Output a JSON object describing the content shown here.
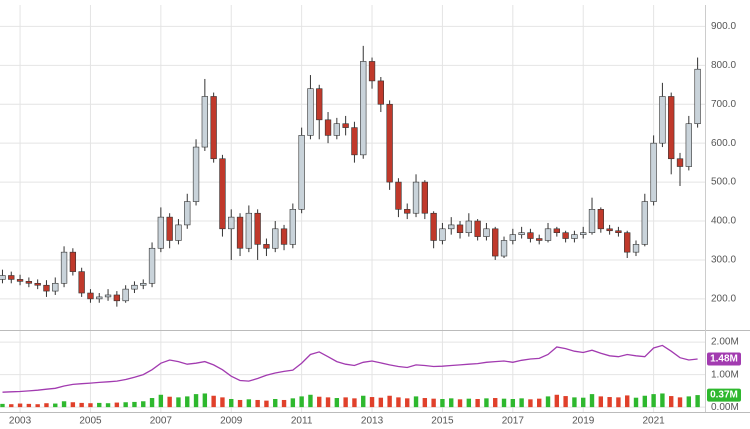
{
  "chart_data": [
    {
      "type": "candlestick",
      "x": [
        2002.5,
        2002.75,
        2003,
        2003.25,
        2003.5,
        2003.75,
        2004,
        2004.25,
        2004.5,
        2004.75,
        2005,
        2005.25,
        2005.5,
        2005.75,
        2006,
        2006.25,
        2006.5,
        2006.75,
        2007,
        2007.25,
        2007.5,
        2007.75,
        2008,
        2008.25,
        2008.5,
        2008.75,
        2009,
        2009.25,
        2009.5,
        2009.75,
        2010,
        2010.25,
        2010.5,
        2010.75,
        2011,
        2011.25,
        2011.5,
        2011.75,
        2012,
        2012.25,
        2012.5,
        2012.75,
        2013,
        2013.25,
        2013.5,
        2013.75,
        2014,
        2014.25,
        2014.5,
        2014.75,
        2015,
        2015.25,
        2015.5,
        2015.75,
        2016,
        2016.25,
        2016.5,
        2016.75,
        2017,
        2017.25,
        2017.5,
        2017.75,
        2018,
        2018.25,
        2018.5,
        2018.75,
        2019,
        2019.25,
        2019.5,
        2019.75,
        2020,
        2020.25,
        2020.5,
        2020.75,
        2021,
        2021.25,
        2021.5,
        2021.75,
        2022,
        2022.25
      ],
      "open": [
        250,
        260,
        250,
        245,
        240,
        235,
        220,
        240,
        320,
        270,
        215,
        200,
        205,
        210,
        195,
        225,
        235,
        240,
        330,
        410,
        350,
        390,
        450,
        590,
        720,
        560,
        380,
        410,
        330,
        420,
        340,
        330,
        380,
        340,
        430,
        620,
        740,
        660,
        620,
        650,
        640,
        570,
        810,
        760,
        700,
        500,
        430,
        420,
        500,
        420,
        350,
        380,
        390,
        370,
        400,
        360,
        380,
        310,
        350,
        365,
        370,
        355,
        350,
        380,
        370,
        355,
        365,
        370,
        430,
        380,
        375,
        370,
        320,
        340,
        450,
        600,
        720,
        560,
        540,
        650
      ],
      "high": [
        275,
        270,
        262,
        255,
        250,
        248,
        255,
        335,
        330,
        280,
        225,
        215,
        225,
        220,
        235,
        245,
        250,
        345,
        435,
        420,
        405,
        470,
        610,
        765,
        730,
        570,
        430,
        420,
        440,
        430,
        355,
        400,
        390,
        445,
        640,
        775,
        750,
        680,
        665,
        670,
        655,
        850,
        820,
        770,
        710,
        510,
        445,
        520,
        505,
        425,
        395,
        410,
        400,
        420,
        405,
        395,
        385,
        360,
        380,
        385,
        380,
        365,
        395,
        385,
        375,
        375,
        385,
        460,
        435,
        390,
        385,
        375,
        350,
        470,
        620,
        755,
        730,
        575,
        670,
        820
      ],
      "low": [
        240,
        240,
        235,
        230,
        225,
        205,
        210,
        230,
        260,
        205,
        190,
        190,
        195,
        180,
        190,
        215,
        225,
        230,
        320,
        330,
        340,
        380,
        440,
        580,
        550,
        360,
        300,
        310,
        320,
        300,
        310,
        320,
        325,
        330,
        420,
        610,
        610,
        600,
        610,
        620,
        550,
        560,
        740,
        680,
        480,
        410,
        405,
        410,
        405,
        330,
        340,
        365,
        355,
        360,
        350,
        350,
        300,
        305,
        340,
        355,
        345,
        340,
        345,
        360,
        345,
        345,
        355,
        365,
        370,
        365,
        360,
        305,
        310,
        335,
        440,
        590,
        520,
        490,
        530,
        640
      ],
      "close": [
        260,
        250,
        245,
        240,
        235,
        220,
        240,
        320,
        270,
        215,
        200,
        205,
        210,
        195,
        225,
        235,
        240,
        330,
        410,
        350,
        390,
        450,
        590,
        720,
        560,
        380,
        410,
        330,
        420,
        340,
        330,
        380,
        340,
        430,
        620,
        740,
        660,
        620,
        650,
        640,
        570,
        810,
        760,
        700,
        500,
        430,
        420,
        500,
        420,
        350,
        380,
        390,
        370,
        400,
        360,
        380,
        310,
        350,
        365,
        370,
        355,
        350,
        380,
        370,
        355,
        365,
        370,
        430,
        380,
        375,
        370,
        320,
        340,
        450,
        600,
        720,
        560,
        540,
        650,
        790
      ],
      "up_color": "#c9d3da",
      "down_color": "#c0392b",
      "outline_color": "#333333",
      "xlim": [
        2002.43,
        2022.46
      ],
      "xticks": [
        2003,
        2005,
        2007,
        2009,
        2011,
        2013,
        2015,
        2017,
        2019,
        2021
      ],
      "ylim": [
        120,
        955
      ],
      "yticks": [
        {
          "value": 200,
          "label": "200.0"
        },
        {
          "value": 300,
          "label": "300.0"
        },
        {
          "value": 400,
          "label": "400.0"
        },
        {
          "value": 500,
          "label": "500.0"
        },
        {
          "value": 600,
          "label": "600.0"
        },
        {
          "value": 700,
          "label": "700.0"
        },
        {
          "value": 800,
          "label": "800.0"
        },
        {
          "value": 900,
          "label": "900.0"
        }
      ],
      "grid": true
    },
    {
      "type": "bar",
      "ylim": [
        -0.15,
        2.28
      ],
      "yticks": [
        {
          "value": 0,
          "label": "0.00M"
        },
        {
          "value": 1,
          "label": "1.00M"
        },
        {
          "value": 2,
          "label": "2.00M"
        }
      ],
      "grid": true,
      "up_color": "#2eb82e",
      "down_color": "#e0402a",
      "series": [
        {
          "type": "line",
          "color": "#a23bb0",
          "values": [
            0.46,
            0.47,
            0.48,
            0.5,
            0.52,
            0.55,
            0.58,
            0.65,
            0.7,
            0.72,
            0.74,
            0.76,
            0.78,
            0.8,
            0.85,
            0.92,
            1.0,
            1.15,
            1.35,
            1.45,
            1.4,
            1.32,
            1.35,
            1.4,
            1.3,
            1.15,
            0.95,
            0.82,
            0.8,
            0.88,
            0.98,
            1.05,
            1.1,
            1.14,
            1.35,
            1.62,
            1.7,
            1.55,
            1.4,
            1.32,
            1.28,
            1.38,
            1.42,
            1.36,
            1.3,
            1.25,
            1.22,
            1.3,
            1.28,
            1.25,
            1.26,
            1.28,
            1.3,
            1.32,
            1.34,
            1.38,
            1.4,
            1.42,
            1.38,
            1.44,
            1.48,
            1.5,
            1.62,
            1.85,
            1.8,
            1.72,
            1.68,
            1.75,
            1.66,
            1.58,
            1.55,
            1.62,
            1.58,
            1.55,
            1.82,
            1.9,
            1.72,
            1.52,
            1.45,
            1.48
          ],
          "value_labels": [
            null,
            null,
            null,
            null,
            null,
            null,
            null,
            null,
            null,
            null,
            null,
            null,
            null,
            null,
            null,
            null,
            null,
            null,
            null,
            null,
            null,
            null,
            null,
            null,
            null,
            null,
            null,
            null,
            null,
            null,
            null,
            null,
            null,
            null,
            null,
            null,
            null,
            null,
            null,
            null,
            null,
            null,
            null,
            null,
            null,
            null,
            null,
            null,
            null,
            null,
            null,
            null,
            null,
            null,
            null,
            null,
            null,
            null,
            null,
            null,
            null,
            null,
            null,
            null,
            null,
            null,
            null,
            null,
            null,
            null,
            null,
            null,
            null,
            null,
            null,
            null,
            null,
            null,
            null,
            "1.48M"
          ]
        },
        {
          "type": "bar",
          "color": "#2eb82e",
          "values": [
            0.1,
            0.09,
            0.11,
            0.1,
            0.09,
            0.12,
            0.11,
            0.18,
            0.15,
            0.13,
            0.12,
            0.13,
            0.12,
            0.14,
            0.15,
            0.16,
            0.18,
            0.28,
            0.38,
            0.32,
            0.3,
            0.33,
            0.4,
            0.42,
            0.35,
            0.3,
            0.25,
            0.22,
            0.24,
            0.22,
            0.2,
            0.25,
            0.22,
            0.27,
            0.33,
            0.38,
            0.32,
            0.3,
            0.28,
            0.3,
            0.27,
            0.35,
            0.31,
            0.29,
            0.35,
            0.3,
            0.27,
            0.33,
            0.28,
            0.26,
            0.25,
            0.27,
            0.24,
            0.26,
            0.25,
            0.27,
            0.28,
            0.26,
            0.25,
            0.27,
            0.24,
            0.26,
            0.33,
            0.38,
            0.34,
            0.3,
            0.29,
            0.4,
            0.33,
            0.31,
            0.3,
            0.36,
            0.29,
            0.35,
            0.4,
            0.42,
            0.34,
            0.3,
            0.33,
            0.37
          ],
          "value_labels": [
            null,
            null,
            null,
            null,
            null,
            null,
            null,
            null,
            null,
            null,
            null,
            null,
            null,
            null,
            null,
            null,
            null,
            null,
            null,
            null,
            null,
            null,
            null,
            null,
            null,
            null,
            null,
            null,
            null,
            null,
            null,
            null,
            null,
            null,
            null,
            null,
            null,
            null,
            null,
            null,
            null,
            null,
            null,
            null,
            null,
            null,
            null,
            null,
            null,
            null,
            null,
            null,
            null,
            null,
            null,
            null,
            null,
            null,
            null,
            null,
            null,
            null,
            null,
            null,
            null,
            null,
            null,
            null,
            null,
            null,
            null,
            null,
            null,
            null,
            null,
            null,
            null,
            null,
            null,
            "0.37M"
          ]
        }
      ]
    }
  ]
}
